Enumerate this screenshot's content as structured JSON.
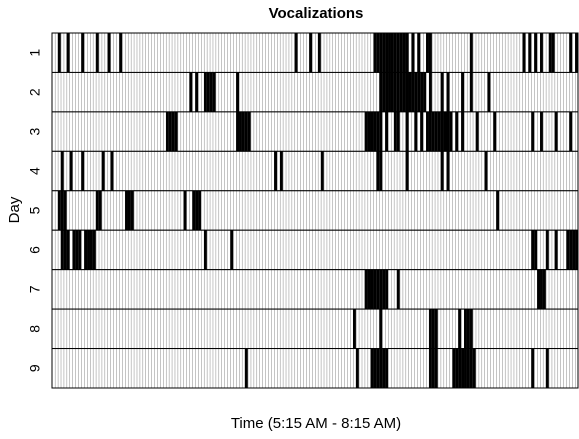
{
  "chart_data": {
    "type": "raster",
    "title": "Vocalizations",
    "xlabel": "Time (5:15 AM - 8:15 AM)",
    "ylabel": "Day",
    "categories": [
      "1",
      "2",
      "3",
      "4",
      "5",
      "6",
      "7",
      "8",
      "9"
    ],
    "xlim": [
      0,
      180
    ],
    "color": "#000000",
    "series": [
      {
        "x": [
          2,
          5,
          10,
          15,
          19,
          23,
          83,
          88,
          91,
          110,
          111,
          112,
          113,
          114,
          115,
          116,
          117,
          118,
          119,
          120,
          121,
          123,
          125,
          128,
          129,
          143,
          161,
          163,
          165,
          167,
          170,
          171,
          177,
          179
        ]
      },
      {
        "x": [
          47,
          49,
          52,
          53,
          54,
          55,
          63,
          112,
          113,
          114,
          115,
          116,
          117,
          118,
          119,
          120,
          121,
          122,
          123,
          124,
          125,
          126,
          127,
          129,
          133,
          135,
          140,
          143,
          149
        ]
      },
      {
        "x": [
          39,
          40,
          41,
          42,
          63,
          64,
          65,
          66,
          67,
          107,
          108,
          109,
          110,
          111,
          112,
          114,
          117,
          118,
          121,
          124,
          126,
          128,
          129,
          130,
          131,
          132,
          133,
          134,
          135,
          136,
          138,
          140,
          145,
          151,
          164,
          167,
          172,
          177
        ]
      },
      {
        "x": [
          3,
          6,
          10,
          17,
          20,
          76,
          78,
          92,
          111,
          112,
          121,
          133,
          135,
          148
        ]
      },
      {
        "x": [
          2,
          3,
          4,
          15,
          16,
          25,
          26,
          27,
          45,
          48,
          49,
          50,
          152
        ]
      },
      {
        "x": [
          3,
          4,
          5,
          7,
          8,
          9,
          11,
          12,
          13,
          14,
          52,
          61,
          164,
          165,
          169,
          172,
          176,
          177,
          178,
          179
        ]
      },
      {
        "x": [
          107,
          108,
          109,
          110,
          111,
          112,
          113,
          114,
          118,
          166,
          167,
          168
        ]
      },
      {
        "x": [
          103,
          112,
          129,
          130,
          131,
          139,
          141,
          142,
          143
        ]
      },
      {
        "x": [
          66,
          104,
          109,
          110,
          111,
          112,
          113,
          114,
          129,
          130,
          131,
          137,
          138,
          139,
          140,
          141,
          142,
          143,
          144,
          164,
          169
        ]
      }
    ]
  }
}
